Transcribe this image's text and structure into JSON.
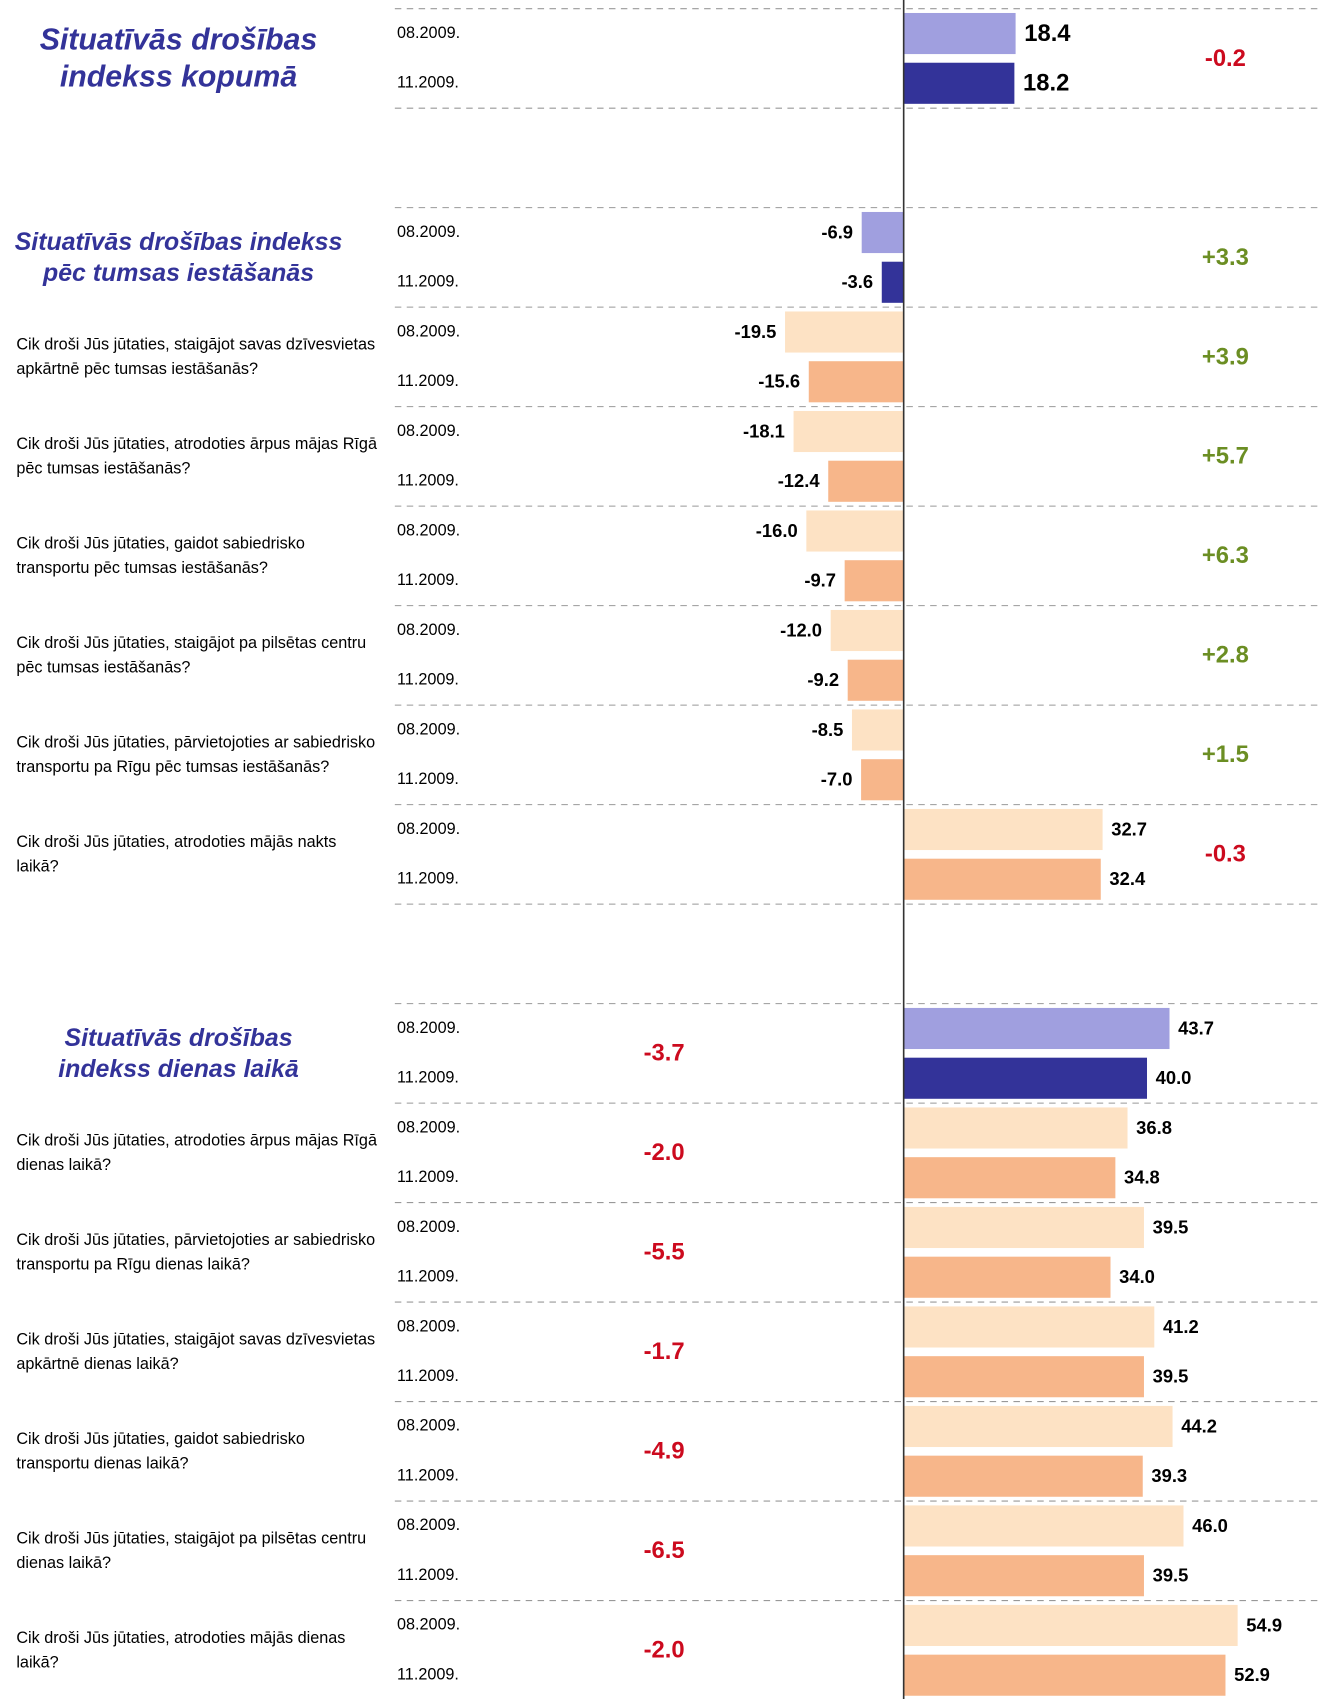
{
  "chart_data": {
    "type": "bar",
    "xlim": [
      -20,
      60
    ],
    "series": [
      {
        "name": "08.2009.",
        "color": "#a09fdf",
        "item_color": "#fde2c4"
      },
      {
        "name": "11.2009.",
        "color": "#333399",
        "item_color": "#f7b68a"
      }
    ],
    "change_colors": {
      "positive": "#6b8e23",
      "negative": "#cc0a1e"
    },
    "groups": [
      {
        "label": "Situatīvās drošības indekss kopumā",
        "summary": true,
        "values": [
          18.4,
          18.2
        ],
        "value_labels": [
          "18.4",
          "18.2"
        ],
        "change": -0.2,
        "change_label": "-0.2"
      },
      {
        "label": "Situatīvās drošības indekss pēc tumsas iestāšanās",
        "summary": true,
        "values": [
          -6.9,
          -3.6
        ],
        "value_labels": [
          "-6.9",
          "-3.6"
        ],
        "change": 3.3,
        "change_label": "+3.3"
      },
      {
        "label": "Cik droši Jūs jūtaties, staigājot savas dzīvesvietas apkārtnē pēc tumsas iestāšanās?",
        "values": [
          -19.5,
          -15.6
        ],
        "value_labels": [
          "-19.5",
          "-15.6"
        ],
        "change": 3.9,
        "change_label": "+3.9"
      },
      {
        "label": "Cik droši Jūs jūtaties, atrodoties ārpus mājas Rīgā pēc tumsas iestāšanās?",
        "values": [
          -18.1,
          -12.4
        ],
        "value_labels": [
          "-18.1",
          "-12.4"
        ],
        "change": 5.7,
        "change_label": "+5.7"
      },
      {
        "label": "Cik droši Jūs jūtaties, gaidot sabiedrisko transportu pēc tumsas iestāšanās?",
        "values": [
          -16.0,
          -9.7
        ],
        "value_labels": [
          "-16.0",
          "-9.7"
        ],
        "change": 6.3,
        "change_label": "+6.3"
      },
      {
        "label": "Cik droši Jūs jūtaties, staigājot pa pilsētas centru pēc tumsas iestāšanās?",
        "values": [
          -12.0,
          -9.2
        ],
        "value_labels": [
          "-12.0",
          "-9.2"
        ],
        "change": 2.8,
        "change_label": "+2.8"
      },
      {
        "label": "Cik droši Jūs jūtaties, pārvietojoties ar sabiedrisko transportu pa Rīgu pēc tumsas iestāšanās?",
        "values": [
          -8.5,
          -7.0
        ],
        "value_labels": [
          "-8.5",
          "-7.0"
        ],
        "change": 1.5,
        "change_label": "+1.5"
      },
      {
        "label": "Cik droši Jūs jūtaties, atrodoties mājās nakts laikā?",
        "values": [
          32.7,
          32.4
        ],
        "value_labels": [
          "32.7",
          "32.4"
        ],
        "change": -0.3,
        "change_label": "-0.3"
      },
      {
        "label": "Situatīvās drošības indekss dienas laikā",
        "summary": true,
        "values": [
          43.7,
          40.0
        ],
        "value_labels": [
          "43.7",
          "40.0"
        ],
        "change": -3.7,
        "change_label": "-3.7"
      },
      {
        "label": "Cik droši Jūs jūtaties, atrodoties ārpus mājas Rīgā dienas laikā?",
        "values": [
          36.8,
          34.8
        ],
        "value_labels": [
          "36.8",
          "34.8"
        ],
        "change": -2.0,
        "change_label": "-2.0"
      },
      {
        "label": "Cik droši Jūs jūtaties, pārvietojoties ar sabiedrisko transportu pa Rīgu dienas laikā?",
        "values": [
          39.5,
          34.0
        ],
        "value_labels": [
          "39.5",
          "34.0"
        ],
        "change": -5.5,
        "change_label": "-5.5"
      },
      {
        "label": "Cik droši Jūs jūtaties, staigājot savas dzīvesvietas apkārtnē dienas laikā?",
        "values": [
          41.2,
          39.5
        ],
        "value_labels": [
          "41.2",
          "39.5"
        ],
        "change": -1.7,
        "change_label": "-1.7"
      },
      {
        "label": "Cik droši Jūs jūtaties, gaidot sabiedrisko transportu dienas laikā?",
        "values": [
          44.2,
          39.3
        ],
        "value_labels": [
          "44.2",
          "39.3"
        ],
        "change": -4.9,
        "change_label": "-4.9"
      },
      {
        "label": "Cik droši Jūs jūtaties, staigājot pa pilsētas centru dienas laikā?",
        "values": [
          46.0,
          39.5
        ],
        "value_labels": [
          "46.0",
          "39.5"
        ],
        "change": -6.5,
        "change_label": "-6.5"
      },
      {
        "label": "Cik droši Jūs jūtaties, atrodoties mājās dienas laikā?",
        "values": [
          54.9,
          52.9
        ],
        "value_labels": [
          "54.9",
          "52.9"
        ],
        "change": -2.0,
        "change_label": "-2.0"
      }
    ]
  }
}
